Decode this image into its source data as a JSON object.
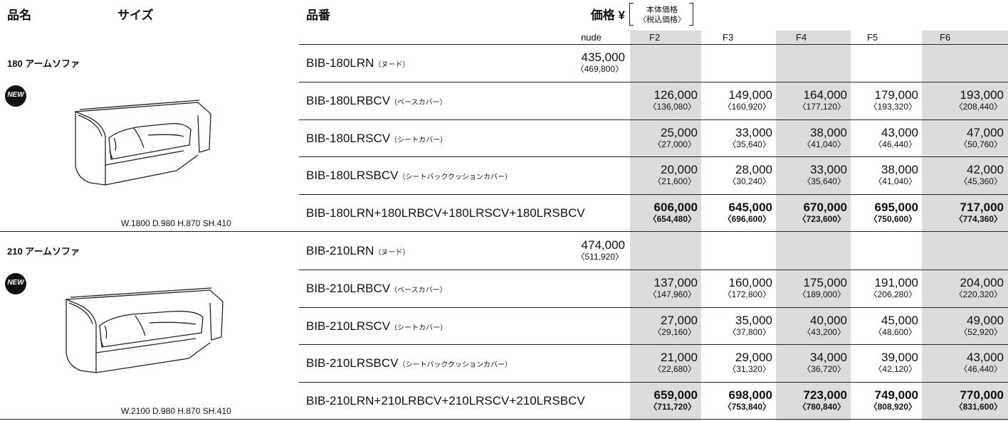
{
  "header": {
    "name": "品名",
    "size": "サイズ",
    "code": "品番",
    "price": "価格 ¥",
    "note_main": "本体価格",
    "note_tax": "〈税込価格〉",
    "nude": "nude",
    "grades": [
      "F2",
      "F3",
      "F4",
      "F5",
      "F6"
    ]
  },
  "products": [
    {
      "name": "180 アームソファ",
      "badge": "NEW",
      "dims": "W.1800 D.980 H.870 SH.410",
      "nude_row": {
        "code": "BIB-180LRN",
        "suffix": "（ヌード）",
        "price": "435,000",
        "tax": "〈469,800〉"
      },
      "cover_rows": [
        {
          "code": "BIB-180LRBCV",
          "suffix": "（ベースカバー）",
          "prices": [
            {
              "price": "126,000",
              "tax": "〈136,080〉"
            },
            {
              "price": "149,000",
              "tax": "〈160,920〉"
            },
            {
              "price": "164,000",
              "tax": "〈177,120〉"
            },
            {
              "price": "179,000",
              "tax": "〈193,320〉"
            },
            {
              "price": "193,000",
              "tax": "〈208,440〉"
            }
          ]
        },
        {
          "code": "BIB-180LRSCV",
          "suffix": "（シートカバー）",
          "prices": [
            {
              "price": "25,000",
              "tax": "〈27,000〉"
            },
            {
              "price": "33,000",
              "tax": "〈35,640〉"
            },
            {
              "price": "38,000",
              "tax": "〈41,040〉"
            },
            {
              "price": "43,000",
              "tax": "〈46,440〉"
            },
            {
              "price": "47,000",
              "tax": "〈50,760〉"
            }
          ]
        },
        {
          "code": "BIB-180LRSBCV",
          "suffix": "（シートバッククッションカバー）",
          "prices": [
            {
              "price": "20,000",
              "tax": "〈21,600〉"
            },
            {
              "price": "28,000",
              "tax": "〈30,240〉"
            },
            {
              "price": "33,000",
              "tax": "〈35,640〉"
            },
            {
              "price": "38,000",
              "tax": "〈41,040〉"
            },
            {
              "price": "42,000",
              "tax": "〈45,360〉"
            }
          ]
        }
      ],
      "total": {
        "code": "BIB-180LRN+180LRBCV+180LRSCV+180LRSBCV",
        "prices": [
          {
            "price": "606,000",
            "tax": "〈654,480〉"
          },
          {
            "price": "645,000",
            "tax": "〈696,600〉"
          },
          {
            "price": "670,000",
            "tax": "〈723,600〉"
          },
          {
            "price": "695,000",
            "tax": "〈750,600〉"
          },
          {
            "price": "717,000",
            "tax": "〈774,360〉"
          }
        ]
      }
    },
    {
      "name": "210 アームソファ",
      "badge": "NEW",
      "dims": "W.2100 D.980 H.870 SH.410",
      "nude_row": {
        "code": "BIB-210LRN",
        "suffix": "（ヌード）",
        "price": "474,000",
        "tax": "〈511,920〉"
      },
      "cover_rows": [
        {
          "code": "BIB-210LRBCV",
          "suffix": "（ベースカバー）",
          "prices": [
            {
              "price": "137,000",
              "tax": "〈147,960〉"
            },
            {
              "price": "160,000",
              "tax": "〈172,800〉"
            },
            {
              "price": "175,000",
              "tax": "〈189,000〉"
            },
            {
              "price": "191,000",
              "tax": "〈206,280〉"
            },
            {
              "price": "204,000",
              "tax": "〈220,320〉"
            }
          ]
        },
        {
          "code": "BIB-210LRSCV",
          "suffix": "（シートカバー）",
          "prices": [
            {
              "price": "27,000",
              "tax": "〈29,160〉"
            },
            {
              "price": "35,000",
              "tax": "〈37,800〉"
            },
            {
              "price": "40,000",
              "tax": "〈43,200〉"
            },
            {
              "price": "45,000",
              "tax": "〈48,600〉"
            },
            {
              "price": "49,000",
              "tax": "〈52,920〉"
            }
          ]
        },
        {
          "code": "BIB-210LRSBCV",
          "suffix": "（シートバッククッションカバー）",
          "prices": [
            {
              "price": "21,000",
              "tax": "〈22,680〉"
            },
            {
              "price": "29,000",
              "tax": "〈31,320〉"
            },
            {
              "price": "34,000",
              "tax": "〈36,720〉"
            },
            {
              "price": "39,000",
              "tax": "〈42,120〉"
            },
            {
              "price": "43,000",
              "tax": "〈46,440〉"
            }
          ]
        }
      ],
      "total": {
        "code": "BIB-210LRN+210LRBCV+210LRSCV+210LRSBCV",
        "prices": [
          {
            "price": "659,000",
            "tax": "〈711,720〉"
          },
          {
            "price": "698,000",
            "tax": "〈753,840〉"
          },
          {
            "price": "723,000",
            "tax": "〈780,840〉"
          },
          {
            "price": "749,000",
            "tax": "〈808,920〉"
          },
          {
            "price": "770,000",
            "tax": "〈831,600〉"
          }
        ]
      }
    }
  ]
}
